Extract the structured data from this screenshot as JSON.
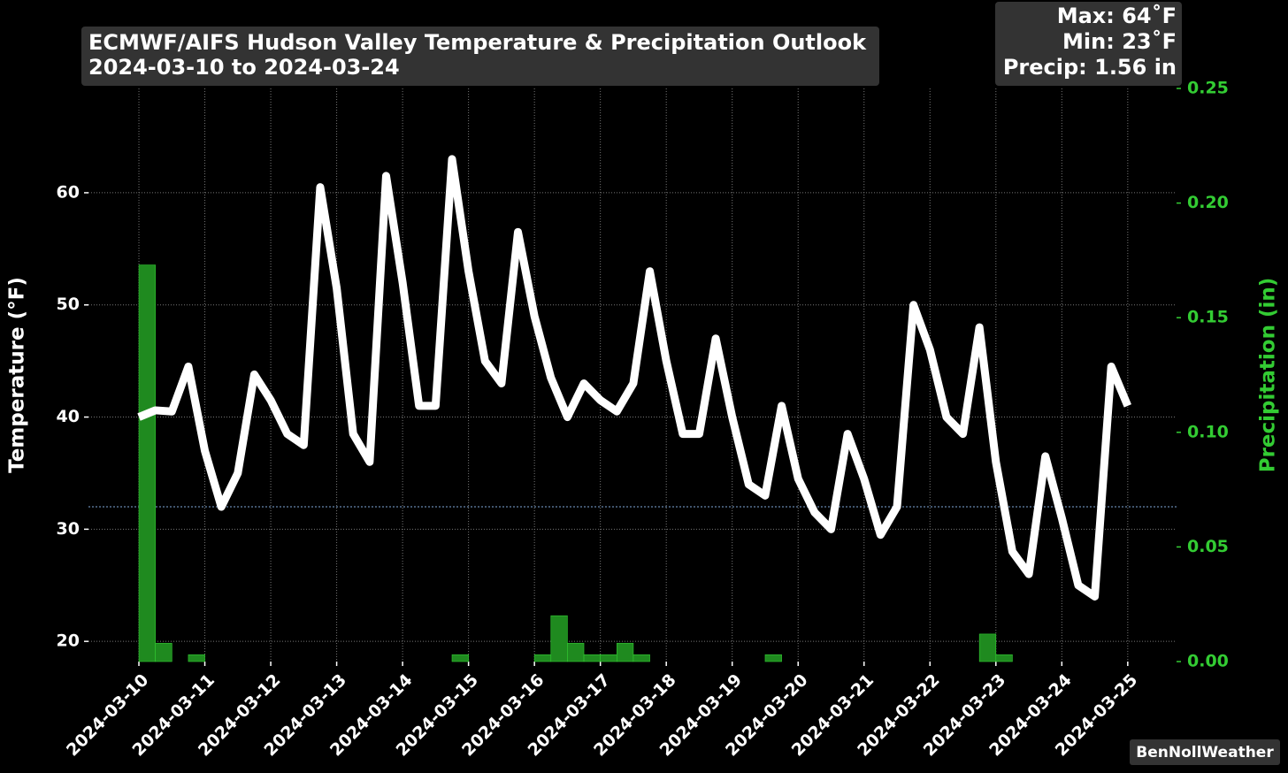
{
  "chart_data": {
    "type": "line",
    "title": "ECMWF/AIFS Hudson Valley Temperature & Precipitation Outlook",
    "subtitle": "2024-03-10 to 2024-03-24",
    "annotations": [
      "Max: 64˚F",
      "Min: 23˚F",
      "Precip: 1.56 in"
    ],
    "watermark": "BenNollWeather",
    "ylabel": "Temperature (°F)",
    "y2label": "Precipitation (in)",
    "hline": 32,
    "hline_color": "#7fa8d8",
    "grid": true,
    "x": [
      "2024-03-10T00:00",
      "2024-03-10T06:00",
      "2024-03-10T12:00",
      "2024-03-10T18:00",
      "2024-03-11T00:00",
      "2024-03-11T06:00",
      "2024-03-11T12:00",
      "2024-03-11T18:00",
      "2024-03-12T00:00",
      "2024-03-12T06:00",
      "2024-03-12T12:00",
      "2024-03-12T18:00",
      "2024-03-13T00:00",
      "2024-03-13T06:00",
      "2024-03-13T12:00",
      "2024-03-13T18:00",
      "2024-03-14T00:00",
      "2024-03-14T06:00",
      "2024-03-14T12:00",
      "2024-03-14T18:00",
      "2024-03-15T00:00",
      "2024-03-15T06:00",
      "2024-03-15T12:00",
      "2024-03-15T18:00",
      "2024-03-16T00:00",
      "2024-03-16T06:00",
      "2024-03-16T12:00",
      "2024-03-16T18:00",
      "2024-03-17T00:00",
      "2024-03-17T06:00",
      "2024-03-17T12:00",
      "2024-03-17T18:00",
      "2024-03-18T00:00",
      "2024-03-18T06:00",
      "2024-03-18T12:00",
      "2024-03-18T18:00",
      "2024-03-19T00:00",
      "2024-03-19T06:00",
      "2024-03-19T12:00",
      "2024-03-19T18:00",
      "2024-03-20T00:00",
      "2024-03-20T06:00",
      "2024-03-20T12:00",
      "2024-03-20T18:00",
      "2024-03-21T00:00",
      "2024-03-21T06:00",
      "2024-03-21T12:00",
      "2024-03-21T18:00",
      "2024-03-22T00:00",
      "2024-03-22T06:00",
      "2024-03-22T12:00",
      "2024-03-22T18:00",
      "2024-03-23T00:00",
      "2024-03-23T06:00",
      "2024-03-23T12:00",
      "2024-03-23T18:00",
      "2024-03-24T00:00",
      "2024-03-24T06:00",
      "2024-03-24T12:00",
      "2024-03-24T18:00",
      "2024-03-25T00:00"
    ],
    "series": [
      {
        "type": "line",
        "color": "#ffffff",
        "values": [
          40,
          40.6,
          40.5,
          44.5,
          37,
          32,
          35,
          43.8,
          41.5,
          38.5,
          37.5,
          60.5,
          51.5,
          38.5,
          36,
          61.5,
          52,
          41,
          41,
          63,
          53,
          45,
          43,
          56.5,
          49,
          43.5,
          40,
          43,
          41.5,
          40.5,
          43,
          53,
          45,
          38.5,
          38.5,
          47,
          40,
          34,
          33,
          41,
          34.5,
          31.5,
          30,
          38.5,
          34.5,
          29.5,
          32,
          50,
          46,
          40,
          38.5,
          48,
          36,
          28,
          26,
          36.5,
          31,
          25,
          24,
          44.5,
          41
        ]
      },
      {
        "type": "bar",
        "axis": "y2",
        "color": "#1f8a1f",
        "values": [
          0.173,
          0.008,
          0,
          0.003,
          0,
          0,
          0,
          0,
          0,
          0,
          0,
          0,
          0,
          0,
          0,
          0,
          0,
          0,
          0,
          0.003,
          0,
          0,
          0,
          0,
          0.003,
          0.02,
          0.008,
          0.003,
          0.003,
          0.008,
          0.003,
          0,
          0,
          0,
          0,
          0,
          0,
          0,
          0.003,
          0,
          0,
          0,
          0,
          0,
          0,
          0,
          0,
          0,
          0,
          0,
          0,
          0.012,
          0.003,
          0,
          0,
          0,
          0,
          0,
          0,
          0,
          0
        ]
      }
    ],
    "xlim": [
      "2024-03-09T05:38",
      "2024-03-25T17:46"
    ],
    "xticks": [
      "2024-03-10",
      "2024-03-11",
      "2024-03-12",
      "2024-03-13",
      "2024-03-14",
      "2024-03-15",
      "2024-03-16",
      "2024-03-17",
      "2024-03-18",
      "2024-03-19",
      "2024-03-20",
      "2024-03-21",
      "2024-03-22",
      "2024-03-23",
      "2024-03-24",
      "2024-03-25"
    ],
    "ylim": [
      18.2,
      69.3
    ],
    "yticks": [
      20,
      30,
      40,
      50,
      60
    ],
    "y2lim": [
      0,
      0.25
    ],
    "y2ticks": [
      {
        "value": 0,
        "label": "0.00"
      },
      {
        "value": 0.05,
        "label": "0.05"
      },
      {
        "value": 0.1,
        "label": "0.10"
      },
      {
        "value": 0.15,
        "label": "0.15"
      },
      {
        "value": 0.2,
        "label": "0.20"
      },
      {
        "value": 0.25,
        "label": "0.25"
      }
    ],
    "y2color": "#33cc33"
  }
}
